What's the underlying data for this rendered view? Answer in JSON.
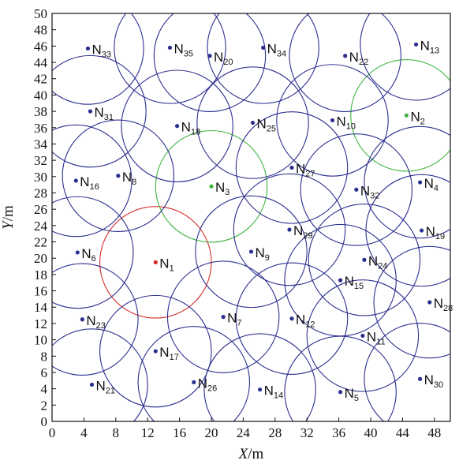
{
  "chart_data": {
    "type": "scatter",
    "xlabel": "X",
    "xunit": "/m",
    "ylabel": "Y",
    "yunit": "/m",
    "xlim": [
      0,
      50
    ],
    "ylim": [
      0,
      50
    ],
    "xticks": [
      0,
      4,
      8,
      12,
      16,
      20,
      24,
      28,
      32,
      36,
      40,
      44,
      48
    ],
    "yticks": [
      0,
      2,
      4,
      6,
      8,
      10,
      12,
      14,
      16,
      18,
      20,
      22,
      24,
      26,
      28,
      30,
      32,
      34,
      36,
      38,
      40,
      42,
      44,
      46,
      48,
      50
    ],
    "grid": false,
    "colors": {
      "normal": "#2b2f8f",
      "red": "#d42a2a",
      "green": "#3fb53f"
    },
    "coverage_radius": 7,
    "nodes": [
      {
        "label": "N",
        "sub": "1",
        "x": 13.0,
        "y": 19.5,
        "status": "red"
      },
      {
        "label": "N",
        "sub": "2",
        "x": 44.5,
        "y": 37.5,
        "status": "green"
      },
      {
        "label": "N",
        "sub": "3",
        "x": 20.0,
        "y": 28.8,
        "status": "green"
      },
      {
        "label": "N",
        "sub": "4",
        "x": 46.2,
        "y": 29.3,
        "status": "normal"
      },
      {
        "label": "N",
        "sub": "5",
        "x": 36.2,
        "y": 3.6,
        "status": "normal"
      },
      {
        "label": "N",
        "sub": "6",
        "x": 3.2,
        "y": 20.7,
        "status": "normal"
      },
      {
        "label": "N",
        "sub": "7",
        "x": 21.5,
        "y": 12.8,
        "status": "normal"
      },
      {
        "label": "N",
        "sub": "8",
        "x": 8.3,
        "y": 30.1,
        "status": "normal"
      },
      {
        "label": "N",
        "sub": "9",
        "x": 25.0,
        "y": 20.8,
        "status": "normal"
      },
      {
        "label": "N",
        "sub": "10",
        "x": 35.2,
        "y": 36.9,
        "status": "normal"
      },
      {
        "label": "N",
        "sub": "11",
        "x": 39.0,
        "y": 10.5,
        "status": "normal"
      },
      {
        "label": "N",
        "sub": "12",
        "x": 30.1,
        "y": 12.6,
        "status": "normal"
      },
      {
        "label": "N",
        "sub": "13",
        "x": 45.7,
        "y": 46.2,
        "status": "normal"
      },
      {
        "label": "N",
        "sub": "14",
        "x": 26.1,
        "y": 3.9,
        "status": "normal"
      },
      {
        "label": "N",
        "sub": "15",
        "x": 36.2,
        "y": 17.3,
        "status": "normal"
      },
      {
        "label": "N",
        "sub": "16",
        "x": 3.0,
        "y": 29.5,
        "status": "normal"
      },
      {
        "label": "N",
        "sub": "17",
        "x": 13.0,
        "y": 8.6,
        "status": "normal"
      },
      {
        "label": "N",
        "sub": "18",
        "x": 15.7,
        "y": 36.2,
        "status": "normal"
      },
      {
        "label": "N",
        "sub": "19",
        "x": 46.4,
        "y": 23.4,
        "status": "normal"
      },
      {
        "label": "N",
        "sub": "20",
        "x": 19.8,
        "y": 44.8,
        "status": "normal"
      },
      {
        "label": "N",
        "sub": "21",
        "x": 5.0,
        "y": 4.5,
        "status": "normal"
      },
      {
        "label": "N",
        "sub": "22",
        "x": 36.8,
        "y": 44.8,
        "status": "normal"
      },
      {
        "label": "N",
        "sub": "23",
        "x": 3.8,
        "y": 12.5,
        "status": "normal"
      },
      {
        "label": "N",
        "sub": "24",
        "x": 39.2,
        "y": 19.8,
        "status": "normal"
      },
      {
        "label": "N",
        "sub": "25",
        "x": 25.2,
        "y": 36.6,
        "status": "normal"
      },
      {
        "label": "N",
        "sub": "26",
        "x": 17.8,
        "y": 4.8,
        "status": "normal"
      },
      {
        "label": "N",
        "sub": "27",
        "x": 30.1,
        "y": 31.1,
        "status": "normal"
      },
      {
        "label": "N",
        "sub": "28",
        "x": 47.4,
        "y": 14.6,
        "status": "normal"
      },
      {
        "label": "N",
        "sub": "29",
        "x": 29.8,
        "y": 23.5,
        "status": "normal"
      },
      {
        "label": "N",
        "sub": "30",
        "x": 46.2,
        "y": 5.2,
        "status": "normal"
      },
      {
        "label": "N",
        "sub": "31",
        "x": 4.8,
        "y": 38.0,
        "status": "normal"
      },
      {
        "label": "N",
        "sub": "32",
        "x": 38.2,
        "y": 28.4,
        "status": "normal"
      },
      {
        "label": "N",
        "sub": "33",
        "x": 4.5,
        "y": 45.7,
        "status": "normal"
      },
      {
        "label": "N",
        "sub": "34",
        "x": 26.5,
        "y": 45.8,
        "status": "normal"
      },
      {
        "label": "N",
        "sub": "35",
        "x": 14.8,
        "y": 45.8,
        "status": "normal"
      }
    ]
  }
}
